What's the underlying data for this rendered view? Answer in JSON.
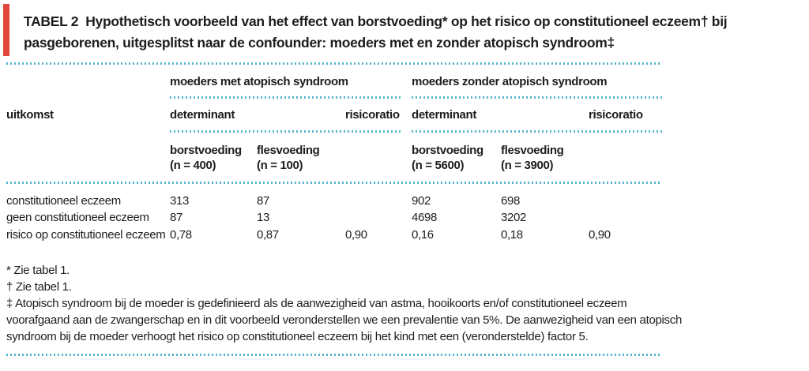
{
  "title": {
    "tag": "TABEL 2",
    "line1_rest": "Hypothetisch voorbeeld van het effect van borstvoeding* op het risico op constitutioneel eczeem† bij",
    "line2": "pasgeborenen, uitgesplitst naar de confounder: moeders met en zonder atopisch syndroom‡"
  },
  "table": {
    "corner_header": "uitkomst",
    "groups": [
      {
        "label": "moeders met atopisch syndroom",
        "determinant_label": "determinant",
        "risicoratio_label": "risicoratio",
        "sub": [
          {
            "line1": "borstvoeding",
            "line2": "(n = 400)"
          },
          {
            "line1": "flesvoeding",
            "line2": "(n = 100)"
          }
        ]
      },
      {
        "label": "moeders zonder atopisch syndroom",
        "determinant_label": "determinant",
        "risicoratio_label": "risicoratio",
        "sub": [
          {
            "line1": "borstvoeding",
            "line2": "(n = 5600)"
          },
          {
            "line1": "flesvoeding",
            "line2": "(n = 3900)"
          }
        ]
      }
    ],
    "rows": [
      {
        "label": "constitutioneel eczeem",
        "values": [
          "313",
          "87",
          "",
          "902",
          "698",
          ""
        ]
      },
      {
        "label": "geen constitutioneel eczeem",
        "values": [
          "87",
          "13",
          "",
          "4698",
          "3202",
          ""
        ]
      },
      {
        "label": "risico op constitutioneel eczeem",
        "values": [
          "0,78",
          "0,87",
          "0,90",
          "0,16",
          "0,18",
          "0,90"
        ]
      }
    ]
  },
  "footnotes": {
    "line1": "* Zie tabel 1.",
    "line2": "† Zie tabel 1.",
    "line3": "‡ Atopisch syndroom bij de moeder is gedefinieerd als de aanwezigheid van astma, hooikoorts en/of constitutioneel eczeem",
    "line4": "voorafgaand aan de zwangerschap en in dit voorbeeld veronderstellen we een prevalentie van 5%. De aanwezigheid van een atopisch",
    "line5": "syndroom bij de moeder verhoogt het risico op constitutioneel eczeem bij het kind met een (veronderstelde) factor 5."
  },
  "colors": {
    "accent_red": "#e2453a",
    "dotted_blue": "#52b5cb",
    "text": "#1d1d1b"
  }
}
